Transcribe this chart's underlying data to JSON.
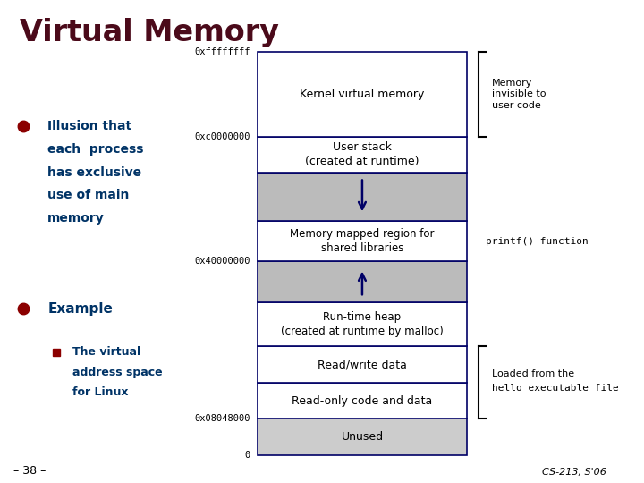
{
  "title": "Virtual Memory",
  "bg_color": "#FFFFFF",
  "title_color": "#4B0A1A",
  "bullet_color": "#8B0000",
  "text_color": "#003366",
  "bullet1_lines": [
    "Illusion that",
    "each  process",
    "has exclusive",
    "use of main",
    "memory"
  ],
  "bullet2": "Example",
  "sub_bullet_lines": [
    "The virtual",
    "address space",
    "for Linux"
  ],
  "right_note1": "Memory\ninvisible to\nuser code",
  "right_note2": "printf() function",
  "right_note3_line1": "Loaded from the",
  "right_note3_line2": "hello executable file",
  "footer_left": "– 38 –",
  "footer_right": "CS-213, S'06",
  "box_border": "#000066",
  "segs": [
    {
      "yf": 0.0,
      "hf": 0.09,
      "label": "Unused",
      "color": "#CCCCCC",
      "fs": 9
    },
    {
      "yf": 0.09,
      "hf": 0.09,
      "label": "Read-only code and data",
      "color": "#FFFFFF",
      "fs": 9
    },
    {
      "yf": 0.18,
      "hf": 0.09,
      "label": "Read/write data",
      "color": "#FFFFFF",
      "fs": 9
    },
    {
      "yf": 0.27,
      "hf": 0.11,
      "label": "Run-time heap\n(created at runtime by malloc)",
      "color": "#FFFFFF",
      "fs": 8.5
    },
    {
      "yf": 0.38,
      "hf": 0.1,
      "label": "",
      "color": "#BBBBBB",
      "fs": 9
    },
    {
      "yf": 0.48,
      "hf": 0.1,
      "label": "Memory mapped region for\nshared libraries",
      "color": "#FFFFFF",
      "fs": 8.5
    },
    {
      "yf": 0.58,
      "hf": 0.12,
      "label": "",
      "color": "#BBBBBB",
      "fs": 9
    },
    {
      "yf": 0.7,
      "hf": 0.09,
      "label": "User stack\n(created at runtime)",
      "color": "#FFFFFF",
      "fs": 9
    },
    {
      "yf": 0.79,
      "hf": 0.21,
      "label": "Kernel virtual memory",
      "color": "#FFFFFF",
      "fs": 9
    }
  ],
  "addr_labels": [
    {
      "text": "0xffffffff",
      "yf": 1.0
    },
    {
      "text": "0xc0000000",
      "yf": 0.79
    },
    {
      "text": "0x40000000",
      "yf": 0.48
    },
    {
      "text": "0x08048000",
      "yf": 0.09
    },
    {
      "text": "0",
      "yf": 0.0
    }
  ]
}
